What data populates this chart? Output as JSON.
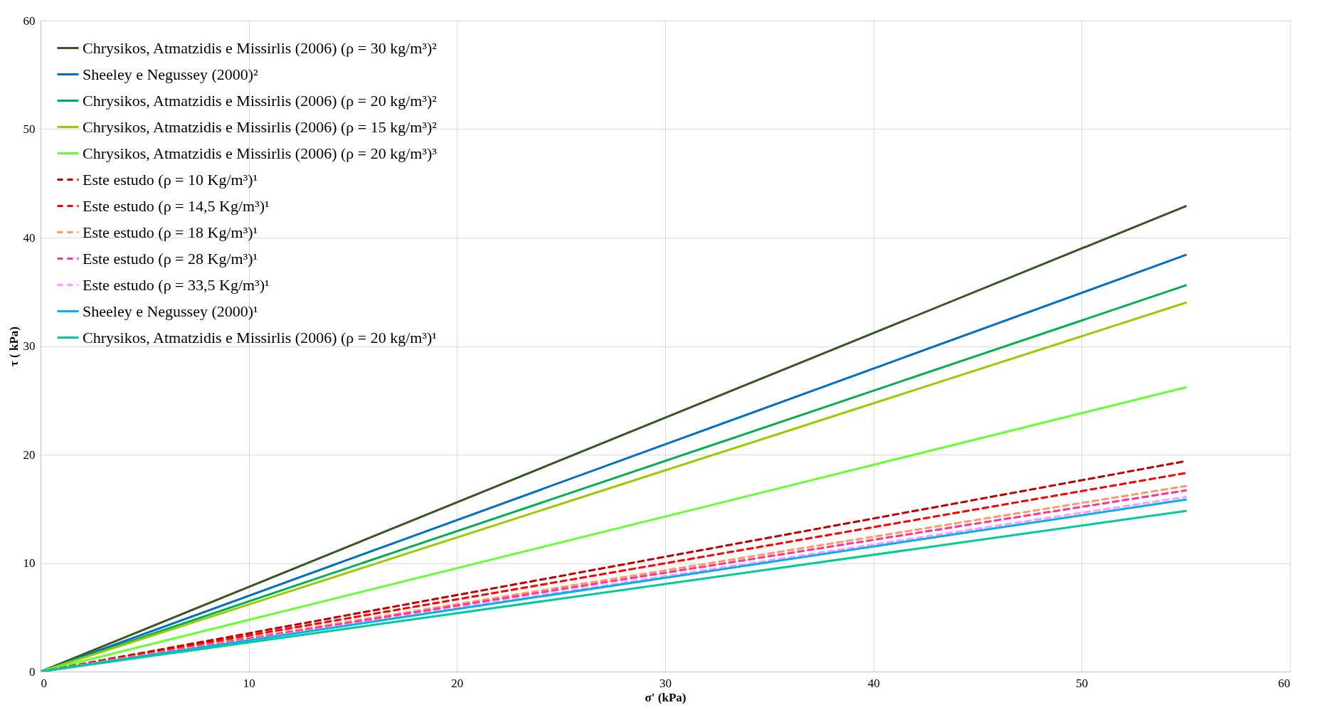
{
  "chart_data": {
    "type": "line",
    "xlabel": "σ' (kPa)",
    "ylabel": "τ ( kPa)",
    "xlim": [
      0,
      60
    ],
    "ylim": [
      0,
      60
    ],
    "xticks": [
      0,
      10,
      20,
      30,
      40,
      50,
      60
    ],
    "yticks": [
      0,
      10,
      20,
      30,
      40,
      50,
      60
    ],
    "grid": true,
    "legend": "top left",
    "marker": "none",
    "x": [
      0,
      55
    ],
    "series": [
      {
        "name": "Chrysikos, Atmatzidis e Missirlis (2006) (ρ = 30 kg/m³)²",
        "color": "#375623",
        "line_style": "solid",
        "values": [
          0,
          42.9
        ]
      },
      {
        "name": "Sheeley e Negussey (2000)²",
        "color": "#0070c0",
        "line_style": "solid",
        "values": [
          0,
          38.4
        ]
      },
      {
        "name": "Chrysikos, Atmatzidis e Missirlis (2006) (ρ = 20 kg/m³)²",
        "color": "#00b050",
        "line_style": "solid",
        "values": [
          0,
          35.6
        ]
      },
      {
        "name": "Chrysikos, Atmatzidis e Missirlis (2006) (ρ = 15 kg/m³)²",
        "color": "#99cc00",
        "line_style": "solid",
        "values": [
          0,
          34.0
        ]
      },
      {
        "name": "Chrysikos, Atmatzidis e Missirlis (2006) (ρ = 20 kg/m³)³",
        "color": "#66ff33",
        "line_style": "solid",
        "values": [
          0,
          26.2
        ]
      },
      {
        "name": "Este estudo (ρ = 10 Kg/m³)¹",
        "color": "#c00000",
        "line_style": "dashed",
        "values": [
          0,
          19.4
        ]
      },
      {
        "name": "Este estudo (ρ = 14,5 Kg/m³)¹",
        "color": "#ff0000",
        "line_style": "dashed",
        "values": [
          0,
          18.3
        ]
      },
      {
        "name": "Este estudo (ρ = 18 Kg/m³)¹",
        "color": "#ff9966",
        "line_style": "dashed",
        "values": [
          0,
          17.1
        ]
      },
      {
        "name": "Este estudo (ρ = 28 Kg/m³)¹",
        "color": "#ff3399",
        "line_style": "dashed",
        "values": [
          0,
          16.7
        ]
      },
      {
        "name": "Este estudo (ρ = 33,5 Kg/m³)¹",
        "color": "#ff99ff",
        "line_style": "dashed",
        "values": [
          0,
          16.1
        ]
      },
      {
        "name": "Sheeley e Negussey (2000)¹",
        "color": "#00b0f0",
        "line_style": "solid",
        "values": [
          0,
          15.85
        ]
      },
      {
        "name": "Chrysikos, Atmatzidis e Missirlis (2006) (ρ = 20 kg/m³)¹",
        "color": "#00cc99",
        "line_style": "solid",
        "values": [
          0,
          14.8
        ]
      }
    ]
  }
}
